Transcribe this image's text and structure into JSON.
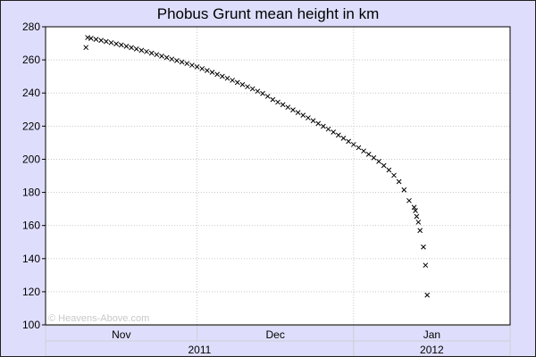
{
  "chart_data": {
    "type": "scatter",
    "title": "Phobus Grunt mean height in km",
    "xlabel": "",
    "ylabel": "",
    "marker": "x",
    "marker_color": "#000000",
    "xlim": [
      "2011-11-01",
      "2012-02-01"
    ],
    "ylim": [
      100,
      280
    ],
    "yticks": [
      100,
      120,
      140,
      160,
      180,
      200,
      220,
      240,
      260,
      280
    ],
    "month_ticks": [
      {
        "label": "Nov",
        "start": "2011-11-01",
        "end": "2011-12-01"
      },
      {
        "label": "Dec",
        "start": "2011-12-01",
        "end": "2012-01-01"
      },
      {
        "label": "Jan",
        "start": "2012-01-01",
        "end": "2012-02-01"
      }
    ],
    "year_ticks": [
      {
        "label": "2011",
        "start": "2011-11-01",
        "end": "2012-01-01"
      },
      {
        "label": "2012",
        "start": "2012-01-01",
        "end": "2012-02-01"
      }
    ],
    "grid": true,
    "watermark": "© Heavens-Above.com",
    "points": [
      [
        "2011-11-09 00:00",
        267.5
      ],
      [
        "2011-11-09 08:00",
        273.5
      ],
      [
        "2011-11-10",
        273.0
      ],
      [
        "2011-11-11",
        272.4
      ],
      [
        "2011-11-12",
        271.8
      ],
      [
        "2011-11-13",
        271.1
      ],
      [
        "2011-11-14",
        270.4
      ],
      [
        "2011-11-15",
        269.7
      ],
      [
        "2011-11-16",
        269.0
      ],
      [
        "2011-11-17",
        268.2
      ],
      [
        "2011-11-18",
        267.4
      ],
      [
        "2011-11-19",
        266.6
      ],
      [
        "2011-11-20",
        265.8
      ],
      [
        "2011-11-21",
        265.0
      ],
      [
        "2011-11-22",
        264.1
      ],
      [
        "2011-11-23",
        263.2
      ],
      [
        "2011-11-24",
        262.3
      ],
      [
        "2011-11-25",
        261.4
      ],
      [
        "2011-11-26",
        260.5
      ],
      [
        "2011-11-27",
        259.6
      ],
      [
        "2011-11-28",
        258.7
      ],
      [
        "2011-11-29",
        257.8
      ],
      [
        "2011-11-30",
        256.8
      ],
      [
        "2011-12-01",
        255.8
      ],
      [
        "2011-12-02",
        254.7
      ],
      [
        "2011-12-03",
        253.6
      ],
      [
        "2011-12-04",
        252.5
      ],
      [
        "2011-12-05",
        251.3
      ],
      [
        "2011-12-06",
        250.1
      ],
      [
        "2011-12-07",
        248.9
      ],
      [
        "2011-12-08",
        247.7
      ],
      [
        "2011-12-09",
        246.4
      ],
      [
        "2011-12-10",
        245.1
      ],
      [
        "2011-12-11",
        243.8
      ],
      [
        "2011-12-12",
        242.5
      ],
      [
        "2011-12-13",
        241.1
      ],
      [
        "2011-12-14",
        239.7
      ],
      [
        "2011-12-15",
        238.0
      ],
      [
        "2011-12-16",
        236.0
      ],
      [
        "2011-12-17",
        234.5
      ],
      [
        "2011-12-18",
        233.0
      ],
      [
        "2011-12-19",
        231.4
      ],
      [
        "2011-12-20",
        229.8
      ],
      [
        "2011-12-21",
        228.2
      ],
      [
        "2011-12-22",
        226.6
      ],
      [
        "2011-12-23",
        225.0
      ],
      [
        "2011-12-24",
        223.3
      ],
      [
        "2011-12-25",
        221.6
      ],
      [
        "2011-12-26",
        219.9
      ],
      [
        "2011-12-27",
        218.2
      ],
      [
        "2011-12-28",
        216.4
      ],
      [
        "2011-12-29",
        214.6
      ],
      [
        "2011-12-30",
        212.7
      ],
      [
        "2011-12-31",
        210.8
      ],
      [
        "2012-01-01",
        208.9
      ],
      [
        "2012-01-02",
        207.0
      ],
      [
        "2012-01-03",
        205.0
      ],
      [
        "2012-01-04",
        203.0
      ],
      [
        "2012-01-05",
        200.9
      ],
      [
        "2012-01-06",
        198.7
      ],
      [
        "2012-01-07",
        196.2
      ],
      [
        "2012-01-08",
        193.5
      ],
      [
        "2012-01-09",
        190.3
      ],
      [
        "2012-01-10",
        186.5
      ],
      [
        "2012-01-11",
        181.5
      ],
      [
        "2012-01-12",
        175.0
      ],
      [
        "2012-01-13 00:00",
        171.0
      ],
      [
        "2012-01-13 06:00",
        169.0
      ],
      [
        "2012-01-13 12:00",
        165.5
      ],
      [
        "2012-01-13 20:00",
        162.0
      ],
      [
        "2012-01-14 04:00",
        157.0
      ],
      [
        "2012-01-14 20:00",
        147.0
      ],
      [
        "2012-01-15 06:00",
        136.0
      ],
      [
        "2012-01-15 14:00",
        118.0
      ]
    ]
  }
}
